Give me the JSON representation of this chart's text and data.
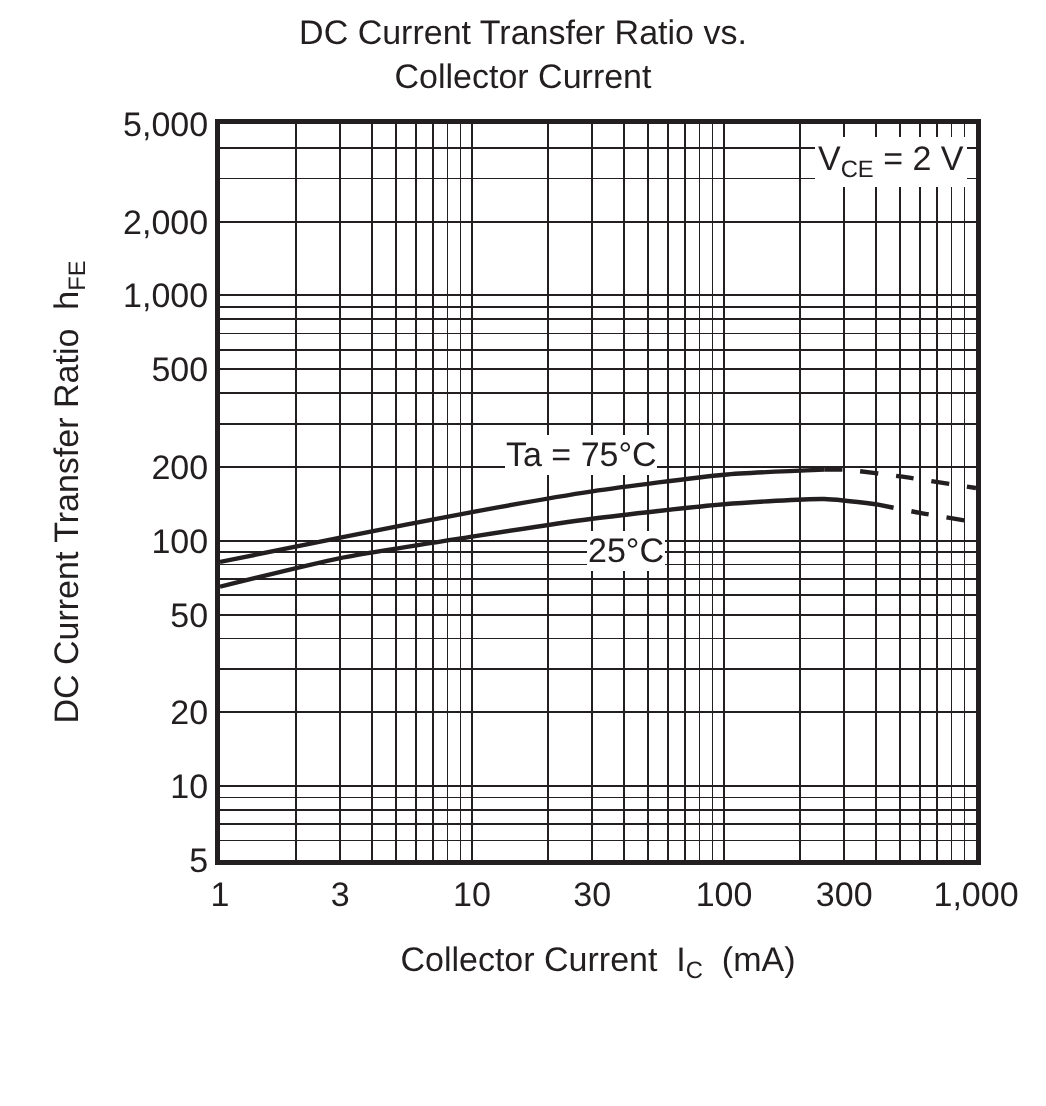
{
  "chart_data": {
    "type": "line",
    "title": "DC Current Transfer Ratio vs. Collector Current",
    "xlabel": "Collector Current  I$_{C}$  (mA)",
    "ylabel": "DC Current Transfer Ratio  h$_{FE}$",
    "log": "xy",
    "grid": true,
    "marker": "none",
    "xlim": [
      1,
      1000
    ],
    "xticks": [
      1,
      3,
      10,
      30,
      100,
      300,
      {
        "value": 1000,
        "label": "1,000"
      }
    ],
    "ylim": [
      5,
      5000
    ],
    "yticks": [
      5,
      10,
      20,
      50,
      100,
      200,
      500,
      {
        "value": 1000,
        "label": "1,000"
      },
      {
        "value": 2000,
        "label": "2,000"
      },
      {
        "value": 5000,
        "label": "5,000"
      }
    ],
    "series": [
      {
        "color": "#231f20",
        "line_style": "solid",
        "x": [
          1,
          3,
          10,
          30,
          100,
          250
        ],
        "values": [
          82,
          103,
          131,
          159,
          186,
          195
        ]
      },
      {
        "color": "#231f20",
        "line_style": "dashed",
        "x": [
          250,
          300,
          500,
          1000
        ],
        "values": [
          195,
          195,
          183,
          164
        ]
      },
      {
        "color": "#231f20",
        "line_style": "solid",
        "x": [
          1,
          3,
          10,
          30,
          100,
          250,
          400
        ],
        "values": [
          65,
          85,
          104,
          123,
          141,
          148,
          141
        ]
      },
      {
        "color": "#231f20",
        "line_style": "dashed",
        "x": [
          400,
          600,
          1000
        ],
        "values": [
          141,
          130,
          119
        ]
      }
    ],
    "annotations": [
      "Ta = 75°C",
      "25°C",
      "V$_{CE}$ = 2 V"
    ]
  }
}
